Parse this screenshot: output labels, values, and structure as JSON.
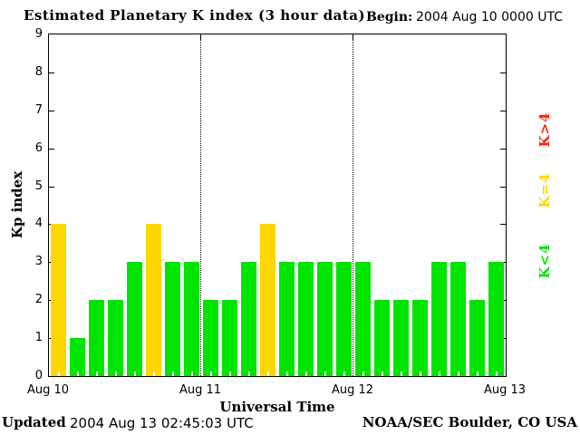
{
  "header": {
    "title": "Estimated Planetary K index (3 hour data)",
    "begin_label": "Begin:",
    "begin_value": "2004 Aug 10 0000 UTC"
  },
  "footer": {
    "updated_label": "Updated",
    "updated_value": "2004 Aug 13 02:45:03 UTC",
    "credit": "NOAA/SEC Boulder, CO USA"
  },
  "chart_data": {
    "type": "bar",
    "title": "Estimated Planetary K index (3 hour data)",
    "begin": "2004 Aug 10 0000 UTC",
    "xlabel": "Universal Time",
    "ylabel": "Kp index",
    "ylim": [
      0,
      9
    ],
    "y_ticks": [
      0,
      1,
      2,
      3,
      4,
      5,
      6,
      7,
      8,
      9
    ],
    "x_tick_labels": [
      "Aug 10",
      "Aug 11",
      "Aug 12",
      "Aug 13"
    ],
    "interval_hours": 3,
    "bars_per_day": 8,
    "values": [
      4,
      1,
      2,
      2,
      3,
      4,
      3,
      3,
      2,
      2,
      3,
      4,
      3,
      3,
      3,
      3,
      3,
      2,
      2,
      2,
      3,
      3,
      2,
      3
    ],
    "grid": "vertical dotted lines at day boundaries",
    "colors": {
      "low": "#00e400",
      "mid": "#ffd700",
      "high": "#ff2200"
    },
    "color_rule": {
      "low": "K<4",
      "mid": "K=4",
      "high": "K>4"
    },
    "legend": [
      {
        "label": "K>4",
        "color": "#ff2200"
      },
      {
        "label": "K=4",
        "color": "#ffd700"
      },
      {
        "label": "K<4",
        "color": "#00e400"
      }
    ],
    "legend_position": "right-rotated"
  }
}
